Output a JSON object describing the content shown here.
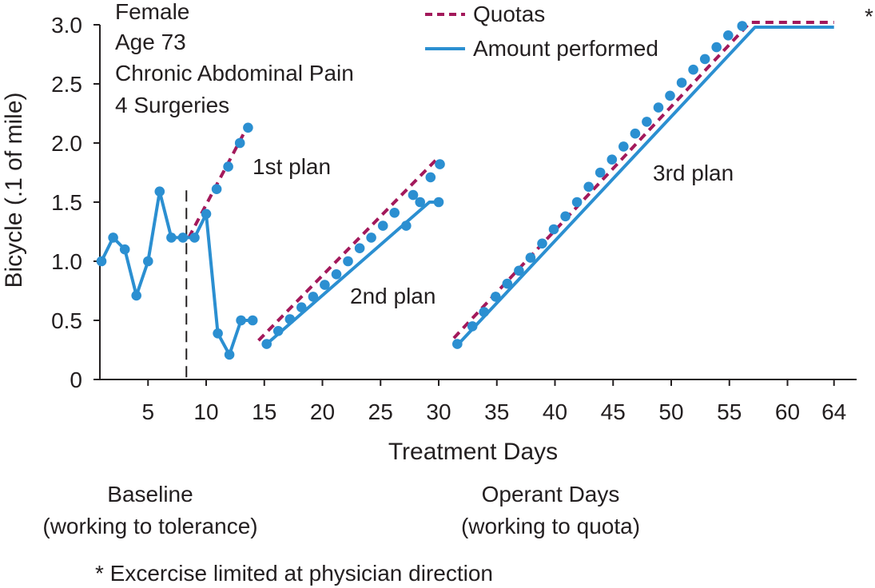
{
  "chart_data": {
    "type": "line",
    "xlabel": "Treatment Days",
    "ylabel": "Bicycle (.1 of mile)",
    "xlim": [
      0,
      65
    ],
    "ylim": [
      0,
      3.0
    ],
    "x_ticks": [
      5,
      10,
      15,
      20,
      25,
      30,
      35,
      40,
      45,
      50,
      55,
      60,
      64
    ],
    "y_ticks": [
      {
        "value": 0,
        "label": "0"
      },
      {
        "value": 0.5,
        "label": "0.5"
      },
      {
        "value": 1.0,
        "label": "1.0"
      },
      {
        "value": 1.5,
        "label": "1.5"
      },
      {
        "value": 2.0,
        "label": "2.0"
      },
      {
        "value": 2.5,
        "label": "2.5"
      },
      {
        "value": 3.0,
        "label": "3.0"
      }
    ],
    "baseline_divider_x": 8.3,
    "info_lines": [
      "Female",
      "Age 73",
      "Chronic Abdominal Pain",
      "4 Surgeries"
    ],
    "legend": {
      "placement": "top-center",
      "items": [
        {
          "label": "Quotas",
          "style": "dashed",
          "color": "#a3195b"
        },
        {
          "label": "Amount performed",
          "style": "solid",
          "color": "#2b8fd1"
        }
      ]
    },
    "annotations": [
      {
        "text": "1st plan",
        "x": 14,
        "y": 2.03
      },
      {
        "text": "2nd plan",
        "x": 22,
        "y": 0.64
      },
      {
        "text": "3rd plan",
        "x": 47.5,
        "y": 1.83
      },
      {
        "text": "*",
        "x": 64.7,
        "y": 3.05
      }
    ],
    "bottom_labels": [
      {
        "lines": [
          "Baseline",
          "(working to tolerance)"
        ],
        "x": 4.5
      },
      {
        "lines": [
          "Operant Days",
          "(working to quota)"
        ],
        "x": 40
      }
    ],
    "footnote": "* Excercise limited at physician direction",
    "series": [
      {
        "name": "Quotas",
        "style": "dashed",
        "color": "#a3195b",
        "segments": [
          [
            [
              8.5,
              1.2
            ],
            [
              13.5,
              2.13
            ]
          ],
          [
            [
              14.5,
              0.33
            ],
            [
              29.8,
              1.86
            ]
          ],
          [
            [
              31.3,
              0.35
            ],
            [
              56.8,
              3.02
            ],
            [
              64,
              3.02
            ]
          ]
        ]
      },
      {
        "name": "Amount performed",
        "style": "solid",
        "color": "#2b8fd1",
        "segments": [
          [
            [
              1,
              1.0
            ],
            [
              2,
              1.2
            ],
            [
              3,
              1.1
            ],
            [
              4,
              0.71
            ],
            [
              5,
              1.0
            ],
            [
              6,
              1.59
            ],
            [
              7,
              1.2
            ],
            [
              8,
              1.2
            ],
            [
              9,
              1.2
            ],
            [
              10,
              1.4
            ],
            [
              11,
              0.39
            ],
            [
              12,
              0.21
            ],
            [
              13,
              0.5
            ],
            [
              14,
              0.5
            ]
          ],
          [
            [
              15.2,
              0.3
            ],
            [
              29.2,
              1.5
            ],
            [
              30,
              1.5
            ]
          ],
          [
            [
              31.7,
              0.3
            ],
            [
              57.2,
              2.98
            ],
            [
              64,
              2.98
            ]
          ]
        ]
      }
    ],
    "markers": [
      [
        1,
        1.0
      ],
      [
        2,
        1.2
      ],
      [
        3,
        1.1
      ],
      [
        4,
        0.71
      ],
      [
        5,
        1.0
      ],
      [
        6,
        1.59
      ],
      [
        7,
        1.2
      ],
      [
        8,
        1.2
      ],
      [
        9,
        1.2
      ],
      [
        10,
        1.4
      ],
      [
        11,
        0.39
      ],
      [
        12,
        0.21
      ],
      [
        13,
        0.5
      ],
      [
        14,
        0.5
      ],
      [
        10.9,
        1.61
      ],
      [
        11.9,
        1.8
      ],
      [
        12.9,
        2.0
      ],
      [
        13.6,
        2.13
      ],
      [
        15.2,
        0.3
      ],
      [
        16.2,
        0.41
      ],
      [
        17.2,
        0.51
      ],
      [
        18.2,
        0.61
      ],
      [
        19.2,
        0.7
      ],
      [
        20.2,
        0.8
      ],
      [
        21.2,
        0.89
      ],
      [
        22.2,
        1.0
      ],
      [
        23.2,
        1.11
      ],
      [
        24.2,
        1.2
      ],
      [
        25.2,
        1.3
      ],
      [
        26.2,
        1.41
      ],
      [
        27.2,
        1.3
      ],
      [
        27.8,
        1.56
      ],
      [
        28.4,
        1.5
      ],
      [
        29.3,
        1.71
      ],
      [
        30,
        1.5
      ],
      [
        30.1,
        1.82
      ],
      [
        31.6,
        0.3
      ],
      [
        32.9,
        0.45
      ],
      [
        33.9,
        0.57
      ],
      [
        34.9,
        0.7
      ],
      [
        35.9,
        0.81
      ],
      [
        36.9,
        0.92
      ],
      [
        37.9,
        1.03
      ],
      [
        38.9,
        1.15
      ],
      [
        39.9,
        1.27
      ],
      [
        40.9,
        1.38
      ],
      [
        41.9,
        1.5
      ],
      [
        42.9,
        1.63
      ],
      [
        43.9,
        1.75
      ],
      [
        44.9,
        1.86
      ],
      [
        45.9,
        1.97
      ],
      [
        46.9,
        2.08
      ],
      [
        47.9,
        2.18
      ],
      [
        48.9,
        2.3
      ],
      [
        49.9,
        2.4
      ],
      [
        50.9,
        2.51
      ],
      [
        51.9,
        2.62
      ],
      [
        52.9,
        2.71
      ],
      [
        53.9,
        2.81
      ],
      [
        54.9,
        2.91
      ],
      [
        56.1,
        2.99
      ]
    ]
  }
}
